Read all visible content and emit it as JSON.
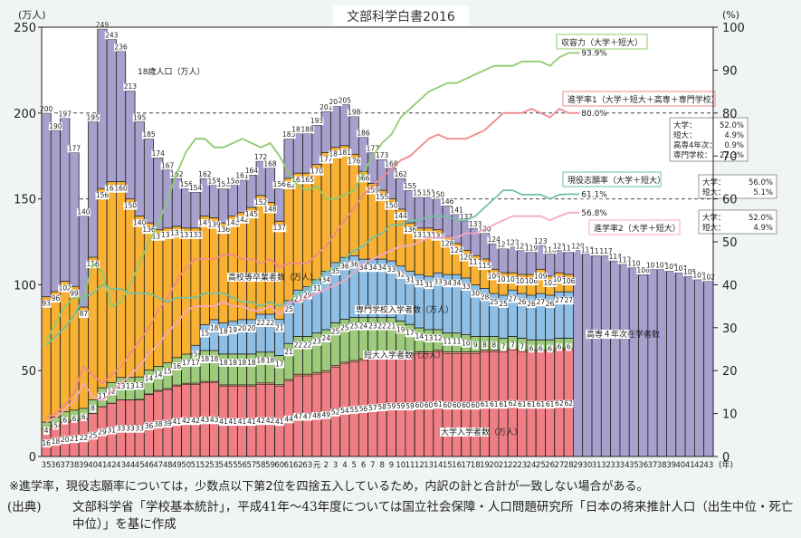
{
  "chart_data": {
    "type": "bar",
    "subtype": "stacked bar with overlaid percentage lines (dual axis)",
    "title": "文部科学白書2016",
    "left_axis": {
      "unit_label": "(万人)",
      "ylim": [
        0,
        250
      ],
      "ticks": [
        0,
        50,
        100,
        150,
        200,
        250
      ]
    },
    "right_axis": {
      "unit_label": "(%)",
      "ylim": [
        0,
        100
      ],
      "ticks": [
        0,
        10,
        20,
        30,
        40,
        50,
        60,
        70,
        80,
        90,
        100
      ]
    },
    "x_unit_label": "(年)",
    "categories": [
      "35",
      "36",
      "37",
      "38",
      "39",
      "40",
      "41",
      "42",
      "43",
      "44",
      "45",
      "46",
      "47",
      "48",
      "49",
      "50",
      "51",
      "52",
      "53",
      "54",
      "55",
      "56",
      "57",
      "58",
      "59",
      "60",
      "61",
      "62",
      "63",
      "元",
      "2",
      "3",
      "4",
      "5",
      "6",
      "7",
      "8",
      "9",
      "10",
      "11",
      "12",
      "13",
      "14",
      "15",
      "16",
      "17",
      "18",
      "19",
      "20",
      "21",
      "22",
      "23",
      "24",
      "25",
      "26",
      "27",
      "28",
      "29",
      "30",
      "31",
      "32",
      "33",
      "34",
      "35",
      "36",
      "37",
      "38",
      "39",
      "40",
      "41",
      "42",
      "43"
    ],
    "gridlines": [
      {
        "axis": "right",
        "value": 80,
        "style": "dashed"
      },
      {
        "axis": "right",
        "value": 60,
        "style": "dashed"
      }
    ],
    "population_18": {
      "name": "18歳人口（万人）",
      "color": "#a79fcc",
      "values": [
        200,
        190,
        197,
        177,
        140,
        195,
        249,
        243,
        236,
        213,
        195,
        185,
        174,
        167,
        162,
        156,
        154,
        162,
        158,
        156,
        158,
        161,
        164,
        172,
        168,
        156,
        185,
        188,
        188,
        193,
        201,
        204,
        205,
        198,
        186,
        177,
        173,
        168,
        162,
        155,
        151,
        151,
        150,
        146,
        141,
        137,
        133,
        130,
        124,
        121,
        122,
        120,
        119,
        123,
        118,
        120,
        119,
        120,
        118,
        117,
        117,
        114,
        112,
        110,
        106,
        109,
        109,
        108,
        107,
        105,
        103,
        102
      ]
    },
    "graduates": {
      "name": "高校等卒業者数（万人）",
      "color": "#f8b133",
      "values": [
        93,
        96,
        102,
        99,
        87,
        116,
        156,
        160,
        160,
        150,
        140,
        136,
        132,
        133,
        134,
        133,
        133,
        140,
        139,
        136,
        140,
        142,
        145,
        152,
        148,
        137,
        162,
        165,
        165,
        170,
        177,
        180,
        181,
        176,
        166,
        159,
        155,
        150,
        144,
        136,
        133,
        133,
        132,
        128,
        124,
        120,
        117,
        115,
        109,
        107,
        107,
        106,
        106,
        109,
        105,
        107,
        106
      ]
    },
    "series": [
      {
        "name": "大学入学者数（万人）",
        "color": "#f07f85",
        "values": [
          16,
          18,
          20,
          21,
          22,
          25,
          29,
          31,
          33,
          33,
          33,
          36,
          38,
          39,
          41,
          42,
          42,
          43,
          43,
          41,
          41,
          41,
          41,
          42,
          42,
          41,
          44,
          47,
          47,
          48,
          49,
          52,
          54,
          55,
          56,
          57,
          58,
          59,
          59,
          59,
          60,
          60,
          61,
          60,
          60,
          60,
          60,
          61,
          61,
          61,
          62,
          61,
          61,
          61,
          61,
          62,
          62
        ]
      },
      {
        "name": "高専4年次在学者数",
        "color": "#f3a07a",
        "values": [
          0,
          0,
          0,
          0,
          0,
          0,
          0,
          0,
          0,
          0,
          0.3,
          0.4,
          0.5,
          0.5,
          0.6,
          0.6,
          0.7,
          0.7,
          0.7,
          0.7,
          0.7,
          0.7,
          0.7,
          0.8,
          0.8,
          0.8,
          0.8,
          0.9,
          0.9,
          0.9,
          0.9,
          0.9,
          0.9,
          0.9,
          0.9,
          0.9,
          0.9,
          0.9,
          0.9,
          0.9,
          0.9,
          0.9,
          0.9,
          0.9,
          0.9,
          0.9,
          0.9,
          0.9,
          0.9,
          0.9,
          0.9,
          0.9,
          0.9,
          0.9,
          0.9,
          0.9,
          0.9
        ]
      },
      {
        "name": "短大入学者数（万人）",
        "color": "#9dcb7b",
        "values": [
          4,
          5,
          6,
          6,
          6,
          8,
          11,
          12,
          13,
          13,
          13,
          14,
          14,
          15,
          16,
          17,
          17,
          18,
          18,
          18,
          18,
          18,
          18,
          18,
          18,
          17,
          21,
          22,
          22,
          23,
          24,
          25,
          25,
          25,
          24,
          23,
          22,
          21,
          19,
          17,
          14,
          13,
          12,
          11,
          11,
          10,
          9,
          8,
          8,
          7,
          7,
          7,
          6,
          6,
          6,
          6,
          6
        ]
      },
      {
        "name": "専門学校入学者数（万人）",
        "color": "#8fbfe5",
        "values": [
          null,
          null,
          null,
          null,
          null,
          null,
          null,
          null,
          null,
          null,
          null,
          null,
          null,
          null,
          null,
          null,
          5,
          15,
          18,
          18,
          19,
          20,
          20,
          22,
          22,
          21,
          25,
          27,
          29,
          31,
          34,
          35,
          36,
          36,
          34,
          34,
          34,
          33,
          32,
          31,
          31,
          31,
          33,
          34,
          34,
          33,
          30,
          28,
          25,
          25,
          27,
          26,
          26,
          27,
          26,
          27,
          27
        ]
      }
    ],
    "lines": [
      {
        "name": "収容力（大学＋短大）",
        "color": "#8fcb6e",
        "end_label": "93.9%",
        "values": [
          27,
          31,
          35,
          37,
          37,
          45,
          43,
          35,
          36,
          40,
          45,
          50,
          54,
          60,
          66,
          71,
          74,
          74,
          72,
          72,
          73,
          74,
          73,
          72,
          73,
          70,
          66,
          63,
          62,
          63,
          60,
          60,
          61,
          62,
          66,
          70,
          73,
          75,
          79,
          81,
          83,
          85,
          86,
          87,
          87,
          88,
          89,
          90,
          91,
          91,
          91,
          92,
          92,
          92,
          91,
          93,
          94
        ]
      },
      {
        "name": "進学率1（大学＋短大＋高専＋専門学校）",
        "color": "#f08a8c",
        "end_label": "80.0%",
        "values": [
          null,
          null,
          null,
          null,
          null,
          null,
          null,
          null,
          null,
          null,
          null,
          null,
          null,
          null,
          null,
          null,
          null,
          null,
          null,
          null,
          null,
          null,
          null,
          null,
          null,
          null,
          null,
          null,
          null,
          null,
          null,
          null,
          null,
          null,
          null,
          null,
          null,
          null,
          null,
          null,
          null,
          null,
          null,
          null,
          null,
          null,
          null,
          null,
          null,
          null,
          null,
          null,
          null,
          null,
          null,
          null,
          80.0
        ],
        "note": "curve approx. 44%→80% over 昭和51–平成28"
      },
      {
        "name": "現役志願率（大学＋短大）",
        "color": "#6fc2a0",
        "end_label": "61.1%",
        "values": [
          null,
          null,
          null,
          null,
          null,
          null,
          null,
          null,
          null,
          null,
          null,
          null,
          null,
          null,
          null,
          null,
          null,
          null,
          null,
          null,
          null,
          null,
          null,
          null,
          null,
          null,
          null,
          null,
          null,
          null,
          null,
          null,
          null,
          null,
          null,
          null,
          null,
          null,
          null,
          null,
          null,
          null,
          null,
          null,
          null,
          null,
          null,
          null,
          null,
          null,
          null,
          null,
          null,
          null,
          null,
          null,
          61.1
        ]
      },
      {
        "name": "進学率2（大学＋短大）",
        "color": "#f4a8c4",
        "end_label": "56.8%",
        "values": [
          null,
          null,
          null,
          null,
          null,
          null,
          null,
          null,
          null,
          null,
          null,
          null,
          null,
          null,
          null,
          null,
          null,
          null,
          null,
          null,
          null,
          null,
          null,
          null,
          null,
          null,
          null,
          null,
          null,
          null,
          null,
          null,
          null,
          null,
          null,
          null,
          null,
          null,
          null,
          null,
          null,
          null,
          null,
          null,
          null,
          null,
          null,
          null,
          null,
          null,
          null,
          null,
          null,
          null,
          null,
          null,
          56.8
        ]
      }
    ],
    "annotations": {
      "pop_label": "18歳人口（万人）",
      "grad_label": "高校等卒業者数（万人）",
      "senmon_label": "専門学校入学者数（万人）",
      "tandai_label": "短大入学者数（万人）",
      "kosen_label": "高専４年次在学者数",
      "daigaku_label": "大学入学者数（万人）",
      "box1": [
        "大学：",
        "52.0%",
        "短大：",
        "4.9%",
        "高専4年次：",
        "0.9%",
        "専門学校：",
        "22.3%"
      ],
      "box2": [
        "大学：",
        "56.0%",
        "短大：",
        "5.1%"
      ],
      "box3": [
        "大学：",
        "52.0%",
        "短大：",
        "4.9%"
      ]
    }
  },
  "footnote": "※進学率，現役志願率については，少数点以下第2位を四捨五入しているため，内訳の計と合計が一致しない場合がある。",
  "source_label": "(出典)",
  "source_text": "文部科学省「学校基本統計」，平成41年～43年度については国立社会保障・人口問題研究所「日本の将来推計人口（出生中位・死亡中位）」を基に作成"
}
